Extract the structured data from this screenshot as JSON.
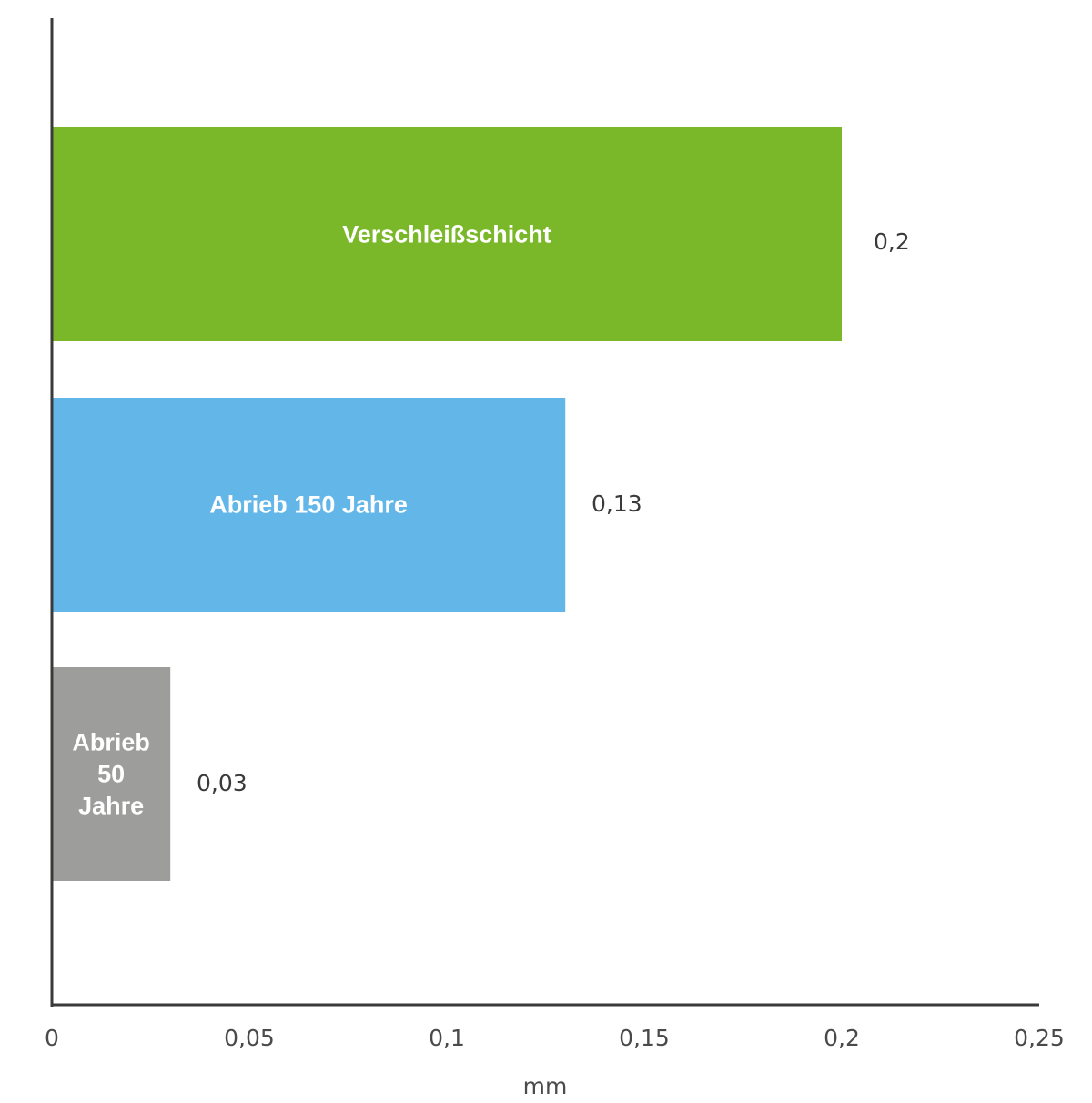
{
  "chart_data": {
    "type": "bar",
    "orientation": "horizontal",
    "categories": [
      "Verschleißschicht",
      "Abrieb 150 Jahre",
      "Abrieb 50 Jahre"
    ],
    "category_label_lines": [
      [
        "Verschleißschicht"
      ],
      [
        "Abrieb 150 Jahre"
      ],
      [
        "Abrieb",
        "50",
        "Jahre"
      ]
    ],
    "values": [
      0.2,
      0.13,
      0.03
    ],
    "value_labels": [
      "0,2",
      "0,13",
      "0,03"
    ],
    "colors": [
      "#7ab82a",
      "#63b7e8",
      "#9d9d9c"
    ],
    "xlabel": "mm",
    "ylabel": "",
    "xlim": [
      0,
      0.25
    ],
    "x_ticks": [
      0,
      0.05,
      0.1,
      0.15,
      0.2,
      0.25
    ],
    "x_tick_labels": [
      "0",
      "0,05",
      "0,1",
      "0,15",
      "0,2",
      "0,25"
    ],
    "grid": false,
    "legend": "none"
  }
}
